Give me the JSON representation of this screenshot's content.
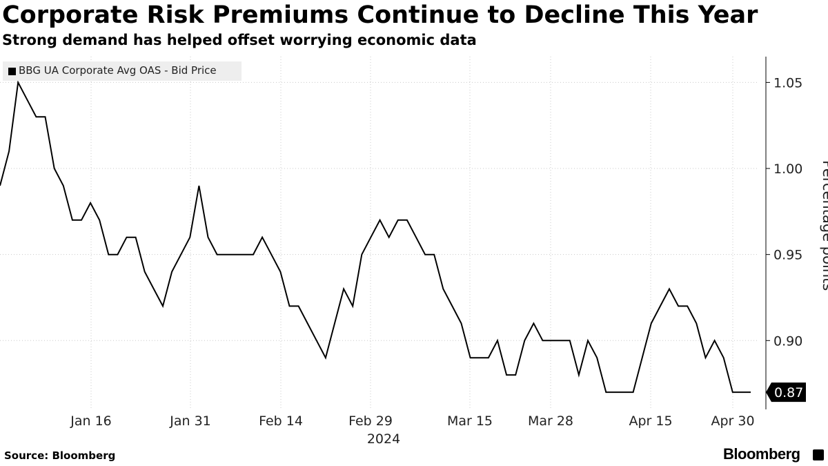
{
  "header": {
    "title": "Corporate Risk Premiums Continue to Decline This Year",
    "subtitle": "Strong demand has helped offset worrying economic data"
  },
  "footer": {
    "source": "Source: Bloomberg",
    "brand": "Bloomberg"
  },
  "chart_data": {
    "type": "line",
    "title": "Corporate Risk Premiums Continue to Decline This Year",
    "ylabel": "Percentage points",
    "xlabel": "2024",
    "ylim": [
      0.86,
      1.065
    ],
    "yticks": [
      "1.05",
      "1.00",
      "0.95",
      "0.90"
    ],
    "xticks": [
      "Jan 16",
      "Jan 31",
      "Feb 14",
      "Feb 29",
      "Mar 15",
      "Mar 28",
      "Apr 15",
      "Apr 30"
    ],
    "year_label": "2024",
    "last_value_label": "0.87",
    "legend": [
      "BBG UA Corporate Avg OAS - Bid Price"
    ],
    "grid": true,
    "series": [
      {
        "name": "BBG UA Corporate Avg OAS - Bid Price",
        "values": [
          0.99,
          1.01,
          1.05,
          1.04,
          1.03,
          1.03,
          1.0,
          0.99,
          0.97,
          0.97,
          0.98,
          0.97,
          0.95,
          0.95,
          0.96,
          0.96,
          0.94,
          0.93,
          0.92,
          0.94,
          0.95,
          0.96,
          0.99,
          0.96,
          0.95,
          0.95,
          0.95,
          0.95,
          0.95,
          0.96,
          0.95,
          0.94,
          0.92,
          0.92,
          0.91,
          0.9,
          0.89,
          0.91,
          0.93,
          0.92,
          0.95,
          0.96,
          0.97,
          0.96,
          0.97,
          0.97,
          0.96,
          0.95,
          0.95,
          0.93,
          0.92,
          0.91,
          0.89,
          0.89,
          0.89,
          0.9,
          0.88,
          0.88,
          0.9,
          0.91,
          0.9,
          0.9,
          0.9,
          0.9,
          0.88,
          0.9,
          0.89,
          0.87,
          0.87,
          0.87,
          0.87,
          0.89,
          0.91,
          0.92,
          0.93,
          0.92,
          0.92,
          0.91,
          0.89,
          0.9,
          0.89,
          0.87,
          0.87,
          0.87
        ]
      }
    ]
  }
}
